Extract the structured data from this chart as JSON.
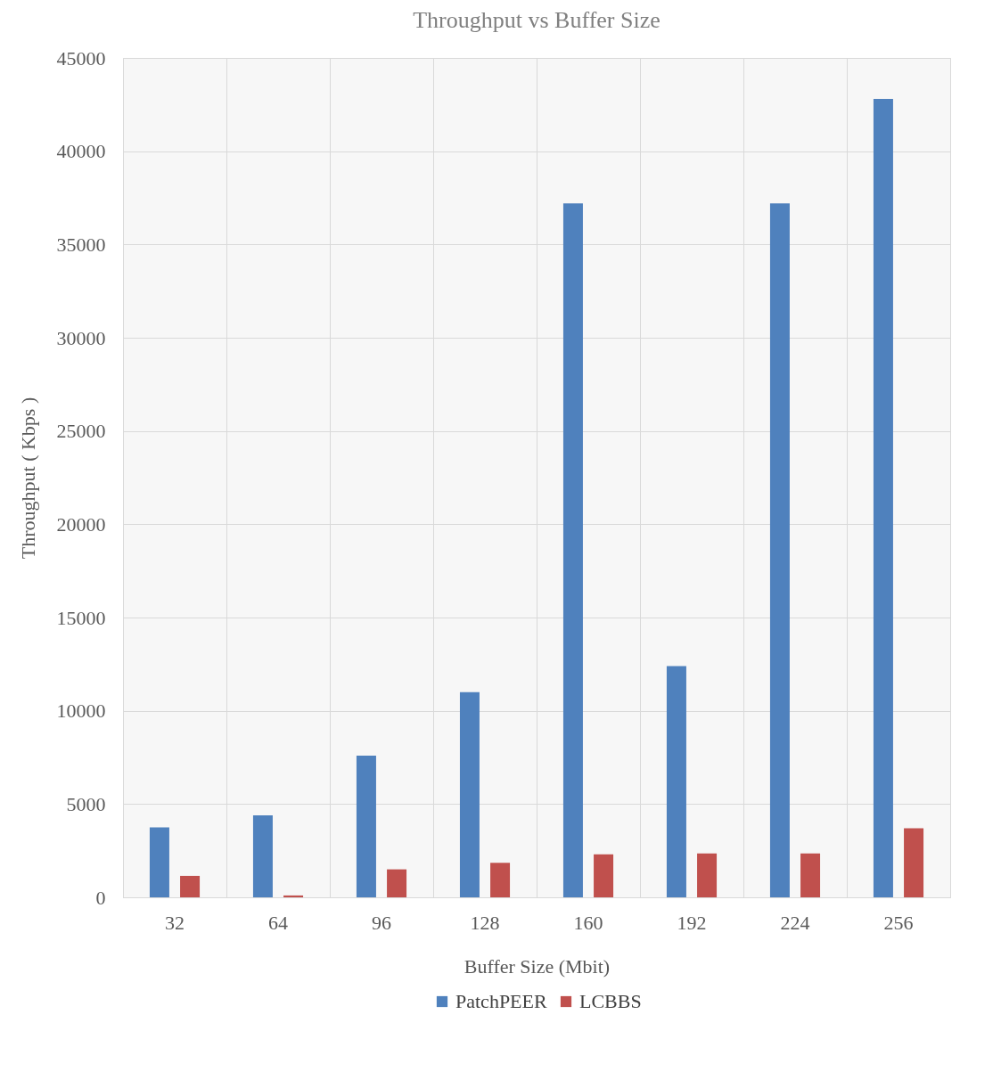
{
  "chart_data": {
    "type": "bar",
    "title": "Throughput vs Buffer Size",
    "xlabel": "Buffer Size (Mbit)",
    "ylabel": "Throughput ( Kbps )",
    "categories": [
      "32",
      "64",
      "96",
      "128",
      "160",
      "192",
      "224",
      "256"
    ],
    "series": [
      {
        "name": "PatchPEER",
        "color": "#4f81bd",
        "values": [
          3750,
          4400,
          7600,
          11000,
          37200,
          12400,
          37200,
          42800
        ]
      },
      {
        "name": "LCBBS",
        "color": "#c0504d",
        "values": [
          1150,
          100,
          1500,
          1850,
          2300,
          2350,
          2350,
          3700
        ]
      }
    ],
    "ylim": [
      0,
      45000
    ],
    "yticks": [
      0,
      5000,
      10000,
      15000,
      20000,
      25000,
      30000,
      35000,
      40000,
      45000
    ],
    "grid": true,
    "legend": "bottom"
  }
}
